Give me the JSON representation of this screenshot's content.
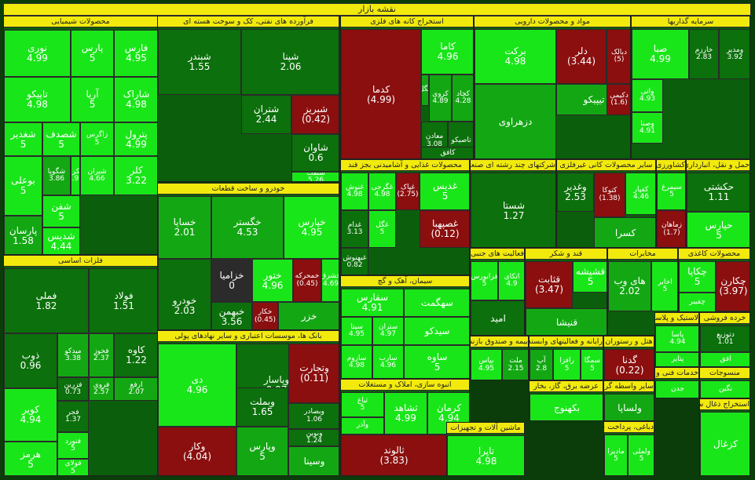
{
  "title": "نقشه بازار",
  "chart_data": {
    "type": "treemap",
    "colors": {
      "bright": "#19e619",
      "mid": "#13a813",
      "dark": "#0c700c",
      "red": "#8b0f0f",
      "gray": "#2b2b2b"
    },
    "sectors": [
      {
        "name": "محصولات شیمیایی",
        "tiles": [
          {
            "symbol": "فارس",
            "value": "4.95",
            "color": "bright"
          },
          {
            "symbol": "پارس",
            "value": "5",
            "color": "bright"
          },
          {
            "symbol": "نوری",
            "value": "4.99",
            "color": "bright"
          },
          {
            "symbol": "شاراک",
            "value": "4.98",
            "color": "bright"
          },
          {
            "symbol": "آریا",
            "value": "5",
            "color": "bright"
          },
          {
            "symbol": "تاپیکو",
            "value": "4.98",
            "color": "bright"
          },
          {
            "symbol": "پترول",
            "value": "4.99",
            "color": "bright"
          },
          {
            "symbol": "زاگرس",
            "value": "5",
            "color": "bright"
          },
          {
            "symbol": "شصدف",
            "value": "5",
            "color": "bright"
          },
          {
            "symbol": "شغدیر",
            "value": "5",
            "color": "bright"
          },
          {
            "symbol": "کلر",
            "value": "3.22",
            "color": "bright"
          },
          {
            "symbol": "شیران",
            "value": "4.66",
            "color": "bright"
          },
          {
            "symbol": "شکربن",
            "value": "4.99",
            "color": "bright"
          },
          {
            "symbol": "شگویا",
            "value": "3.86",
            "color": "mid"
          },
          {
            "symbol": "بوعلی",
            "value": "5",
            "color": "bright"
          },
          {
            "symbol": "شفن",
            "value": "5",
            "color": "bright"
          },
          {
            "symbol": "پارسان",
            "value": "1.58",
            "color": "mid"
          },
          {
            "symbol": "شدیس",
            "value": "4.44",
            "color": "bright"
          }
        ]
      },
      {
        "name": "فلزات اساسی",
        "tiles": [
          {
            "symbol": "فولاد",
            "value": "1.51",
            "color": "dark"
          },
          {
            "symbol": "فملی",
            "value": "1.82",
            "color": "dark"
          },
          {
            "symbol": "کاوه",
            "value": "1.22",
            "color": "dark"
          },
          {
            "symbol": "فخوز",
            "value": "2.37",
            "color": "mid"
          },
          {
            "symbol": "میدکو",
            "value": "3.38",
            "color": "mid"
          },
          {
            "symbol": "ذوب",
            "value": "0.96",
            "color": "dark"
          },
          {
            "symbol": "ارفع",
            "value": "2.07",
            "color": "mid"
          },
          {
            "symbol": "فروی",
            "value": "2.57",
            "color": "mid"
          },
          {
            "symbol": "فزرین",
            "value": "0.73",
            "color": "dark"
          },
          {
            "symbol": "فجر",
            "value": "1.37",
            "color": "dark"
          },
          {
            "symbol": "کویر",
            "value": "4.94",
            "color": "bright"
          },
          {
            "symbol": "فنورد",
            "value": "5",
            "color": "bright"
          },
          {
            "symbol": "فولای",
            "value": "5",
            "color": "bright"
          },
          {
            "symbol": "هرمز",
            "value": "5",
            "color": "bright"
          }
        ]
      },
      {
        "name": "فرآورده های نفتی، کک و سوخت هسته ای",
        "tiles": [
          {
            "symbol": "شپنا",
            "value": "2.06",
            "color": "dark"
          },
          {
            "symbol": "شبندر",
            "value": "1.55",
            "color": "dark"
          },
          {
            "symbol": "شتران",
            "value": "2.44",
            "color": "dark"
          },
          {
            "symbol": "شبریز",
            "value": "(0.42)",
            "color": "red"
          },
          {
            "symbol": "شاوان",
            "value": "0.6",
            "color": "dark"
          },
          {
            "symbol": "شنفت",
            "value": "5.26",
            "color": "bright"
          }
        ]
      },
      {
        "name": "خودرو و ساخت قطعات",
        "tiles": [
          {
            "symbol": "خپارس",
            "value": "4.95",
            "color": "bright"
          },
          {
            "symbol": "خگستر",
            "value": "4.53",
            "color": "mid"
          },
          {
            "symbol": "خساپا",
            "value": "2.01",
            "color": "mid"
          },
          {
            "symbol": "خزامیا",
            "value": "0",
            "color": "gray"
          },
          {
            "symbol": "ختور",
            "value": "4.96",
            "color": "bright"
          },
          {
            "symbol": "خمحرکه",
            "value": "(0.45)",
            "color": "red"
          },
          {
            "symbol": "خشرق",
            "value": "4.69",
            "color": "bright"
          },
          {
            "symbol": "خودرو",
            "value": "2.03",
            "color": "dark"
          },
          {
            "symbol": "خبهمن",
            "value": "3.56",
            "color": "dark"
          },
          {
            "symbol": "خکار",
            "value": "(0.45)",
            "color": "red"
          },
          {
            "symbol": "خزر",
            "value": "",
            "color": "mid"
          }
        ]
      },
      {
        "name": "بانک ها، موسسات اعتباری و سایر نهادهای پولی",
        "tiles": [
          {
            "symbol": "دی",
            "value": "4.96",
            "color": "bright"
          },
          {
            "symbol": "وپاسار",
            "value": "0.07",
            "color": "dark"
          },
          {
            "symbol": "وتجارت",
            "value": "(0.11)",
            "color": "red"
          },
          {
            "symbol": "وبملت",
            "value": "1.65",
            "color": "dark"
          },
          {
            "symbol": "وبصادر",
            "value": "1.06",
            "color": "dark"
          },
          {
            "symbol": "ونوین",
            "value": "1.24",
            "color": "dark"
          },
          {
            "symbol": "وکار",
            "value": "(4.04)",
            "color": "red"
          },
          {
            "symbol": "وپارس",
            "value": "5",
            "color": "mid"
          },
          {
            "symbol": "وسینا",
            "value": "",
            "color": "mid"
          }
        ]
      },
      {
        "name": "استخراج کانه های فلزی",
        "tiles": [
          {
            "symbol": "کدما",
            "value": "(4.99)",
            "color": "red"
          },
          {
            "symbol": "کاما",
            "value": "4.96",
            "color": "bright"
          },
          {
            "symbol": "کگل",
            "value": "",
            "color": "mid"
          },
          {
            "symbol": "کروی",
            "value": "4.89",
            "color": "mid"
          },
          {
            "symbol": "کچاد",
            "value": "4.28",
            "color": "mid"
          },
          {
            "symbol": "تاصیکو",
            "value": "",
            "color": "dark"
          },
          {
            "symbol": "معادن",
            "value": "3.08",
            "color": "dark"
          },
          {
            "symbol": "کافق",
            "value": "",
            "color": "dark"
          }
        ]
      },
      {
        "name": "مواد و محصولات دارویی",
        "tiles": [
          {
            "symbol": "برکت",
            "value": "4.98",
            "color": "bright"
          },
          {
            "symbol": "دلر",
            "value": "(3.44)",
            "color": "red"
          },
          {
            "symbol": "دبالک",
            "value": "(5)",
            "color": "red"
          },
          {
            "symbol": "تیپیکو",
            "value": "",
            "color": "mid"
          },
          {
            "symbol": "دکیمی",
            "value": "(1.6)",
            "color": "red"
          },
          {
            "symbol": "دزهراوی",
            "value": "",
            "color": "mid"
          }
        ]
      },
      {
        "name": "سرمایه گذاریها",
        "tiles": [
          {
            "symbol": "صبا",
            "value": "4.99",
            "color": "bright"
          },
          {
            "symbol": "خارزم",
            "value": "2.83",
            "color": "dark"
          },
          {
            "symbol": "ومدیر",
            "value": "3.92",
            "color": "dark"
          },
          {
            "symbol": "واتی",
            "value": "4.93",
            "color": "bright"
          },
          {
            "symbol": "وصنا",
            "value": "4.91",
            "color": "bright"
          }
        ]
      },
      {
        "name": "محصولات غذایی و آشامیدنی بجز قند",
        "tiles": [
          {
            "symbol": "غگرجی",
            "value": "4.98",
            "color": "bright"
          },
          {
            "symbol": "غنوش",
            "value": "4.98",
            "color": "bright"
          },
          {
            "symbol": "غدام",
            "value": "3.13",
            "color": "dark"
          },
          {
            "symbol": "غبهنوش",
            "value": "0.82",
            "color": "dark"
          },
          {
            "symbol": "غپاک",
            "value": "(2.75)",
            "color": "red"
          },
          {
            "symbol": "غدیس",
            "value": "5",
            "color": "bright"
          },
          {
            "symbol": "غصپهبا",
            "value": "(0.12)",
            "color": "red"
          },
          {
            "symbol": "غگل",
            "value": "5",
            "color": "bright"
          }
        ]
      },
      {
        "name": "شرکتهای چند رشته ای صنعتی",
        "tiles": [
          {
            "symbol": "شستا",
            "value": "1.27",
            "color": "dark"
          }
        ]
      },
      {
        "name": "سایر محصولات کانی غیرفلزی",
        "tiles": [
          {
            "symbol": "وغدیر",
            "value": "2.53",
            "color": "dark"
          },
          {
            "symbol": "کتوکا",
            "value": "(1.38)",
            "color": "red"
          },
          {
            "symbol": "کفپار",
            "value": "4.46",
            "color": "bright"
          },
          {
            "symbol": "کسرا",
            "value": "",
            "color": "mid"
          }
        ]
      },
      {
        "name": "کشاورزی، دامپروری",
        "tiles": [
          {
            "symbol": "سیمرغ",
            "value": "5",
            "color": "bright"
          },
          {
            "symbol": "زماهان",
            "value": "(1.7)",
            "color": "red"
          }
        ]
      },
      {
        "name": "حمل و نقل، انبارداری",
        "tiles": [
          {
            "symbol": "حکشتی",
            "value": "1.11",
            "color": "dark"
          },
          {
            "symbol": "حپارس",
            "value": "5",
            "color": "bright"
          }
        ]
      },
      {
        "name": "فعالیت های جنبی به نهادهای مالی",
        "tiles": [
          {
            "symbol": "اتکای",
            "value": "4.9",
            "color": "bright"
          },
          {
            "symbol": "فرابورس",
            "value": "5",
            "color": "bright"
          },
          {
            "symbol": "امید",
            "value": "",
            "color": "dark"
          }
        ]
      },
      {
        "name": "قند و شکر",
        "tiles": [
          {
            "symbol": "قثابت",
            "value": "(3.47)",
            "color": "red"
          },
          {
            "symbol": "قشیشه",
            "value": "5",
            "color": "bright"
          },
          {
            "symbol": "قنیشا",
            "value": "",
            "color": "mid"
          }
        ]
      },
      {
        "name": "مخابرات",
        "tiles": [
          {
            "symbol": "اخابر",
            "value": "5",
            "color": "bright"
          },
          {
            "symbol": "های وب",
            "value": "2.02",
            "color": "mid"
          }
        ]
      },
      {
        "name": "محصولات کاغذی",
        "tiles": [
          {
            "symbol": "چکارن",
            "value": "(3.97)",
            "color": "red"
          },
          {
            "symbol": "چکاپا",
            "value": "5",
            "color": "bright"
          },
          {
            "symbol": "چفیبر",
            "value": "",
            "color": "bright"
          }
        ]
      },
      {
        "name": "سیمان، آهک و گچ",
        "tiles": [
          {
            "symbol": "سفارس",
            "value": "4.91",
            "color": "bright"
          },
          {
            "symbol": "سیتا",
            "value": "4.95",
            "color": "bright"
          },
          {
            "symbol": "ستران",
            "value": "4.97",
            "color": "bright"
          },
          {
            "symbol": "ساروم",
            "value": "4.98",
            "color": "bright"
          },
          {
            "symbol": "سارب",
            "value": "4.96",
            "color": "bright"
          },
          {
            "symbol": "سهگمت",
            "value": "",
            "color": "bright"
          },
          {
            "symbol": "سیدکو",
            "value": "",
            "color": "bright"
          },
          {
            "symbol": "ساوه",
            "value": "5",
            "color": "bright"
          }
        ]
      },
      {
        "name": "بیمه و صندوق بازنشستگی",
        "tiles": [
          {
            "symbol": "ملت",
            "value": "2.15",
            "color": "mid"
          },
          {
            "symbol": "بپاس",
            "value": "4.95",
            "color": "bright"
          },
          {
            "symbol": "البرز",
            "value": "",
            "color": "bright"
          }
        ]
      },
      {
        "name": "رایانه و فعالیتهای وابسته",
        "tiles": [
          {
            "symbol": "رافزا",
            "value": "5",
            "color": "bright"
          },
          {
            "symbol": "آپ",
            "value": "2.8",
            "color": "mid"
          },
          {
            "symbol": "سمگا",
            "value": "5",
            "color": "bright"
          },
          {
            "symbol": "مرقام",
            "value": "",
            "color": "bright"
          },
          {
            "symbol": "رانفور",
            "value": "5",
            "color": "bright"
          }
        ]
      },
      {
        "name": "هتل و رستوران",
        "tiles": [
          {
            "symbol": "گدنا",
            "value": "(0.22)",
            "color": "red"
          },
          {
            "symbol": "بپیوند",
            "value": "",
            "color": "bright"
          }
        ]
      },
      {
        "name": "لاستیک و پلاستیک",
        "tiles": [
          {
            "symbol": "پاسا",
            "value": "4.94",
            "color": "bright"
          },
          {
            "symbol": "پتایر",
            "value": "",
            "color": "bright"
          },
          {
            "symbol": "پکرمان",
            "value": "",
            "color": "bright"
          }
        ]
      },
      {
        "name": "خرده فروشی",
        "tiles": [
          {
            "symbol": "دتوزیع",
            "value": "1.01",
            "color": "dark"
          },
          {
            "symbol": "افق",
            "value": "",
            "color": "bright"
          }
        ]
      },
      {
        "name": "انبوه سازی، املاک و مستغلات",
        "tiles": [
          {
            "symbol": "کرمان",
            "value": "4.94",
            "color": "bright"
          },
          {
            "symbol": "ثشاهد",
            "value": "4.99",
            "color": "bright"
          },
          {
            "symbol": "ثباغ",
            "value": "5",
            "color": "bright"
          },
          {
            "symbol": "ثالوند",
            "value": "(3.83)",
            "color": "red"
          },
          {
            "symbol": "وآذر",
            "value": "",
            "color": "bright"
          },
          {
            "symbol": "ثاخت",
            "value": "",
            "color": "bright"
          }
        ]
      },
      {
        "name": "ماشین آلات و تجهیزات",
        "tiles": [
          {
            "symbol": "تاپرا",
            "value": "4.98",
            "color": "bright"
          },
          {
            "symbol": "تایرا",
            "value": "",
            "color": "bright"
          },
          {
            "symbol": "کرماشین",
            "value": "",
            "color": "bright"
          }
        ]
      },
      {
        "name": "عرضه برق، گاز، بخار",
        "tiles": [
          {
            "symbol": "بکهنوج",
            "value": "",
            "color": "bright"
          },
          {
            "symbol": "بموتو",
            "value": "",
            "color": "bright"
          }
        ]
      },
      {
        "name": "سایر واسطه گری های مالی",
        "tiles": [
          {
            "symbol": "ولساپا",
            "value": "",
            "color": "mid"
          },
          {
            "symbol": "وایران",
            "value": "",
            "color": "dark"
          },
          {
            "symbol": "ولپارس",
            "value": "",
            "color": "bright"
          }
        ]
      },
      {
        "name": "دباغی، پرداخت چرم",
        "tiles": [
          {
            "symbol": "ولملی",
            "value": "5",
            "color": "bright"
          },
          {
            "symbol": "مادیرا",
            "value": "5",
            "color": "bright"
          }
        ]
      },
      {
        "name": "خدمات فنی و مهندسی",
        "tiles": [
          {
            "symbol": "جدن",
            "value": "",
            "color": "bright"
          },
          {
            "symbol": "فاذر",
            "value": "",
            "color": "bright"
          }
        ]
      },
      {
        "name": "منسوجات",
        "tiles": [
          {
            "symbol": "نگین",
            "value": "",
            "color": "bright"
          }
        ]
      },
      {
        "name": "استخراج ذغال سنگ",
        "tiles": [
          {
            "symbol": "کزغال",
            "value": "",
            "color": "bright"
          }
        ]
      },
      {
        "name": "تولید محصولات کامپیوتری",
        "tiles": [
          {
            "symbol": "لپارس",
            "value": "5",
            "color": "bright"
          },
          {
            "symbol": "لخانه",
            "value": "",
            "color": "bright"
          }
        ]
      }
    ]
  }
}
